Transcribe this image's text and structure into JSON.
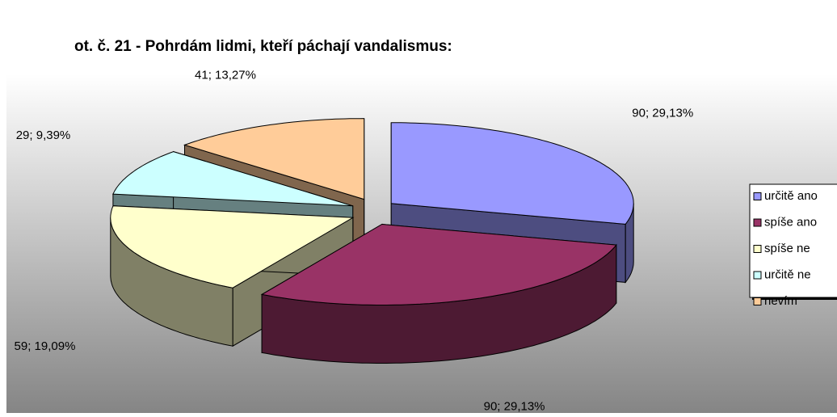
{
  "chart_data": {
    "type": "pie3d",
    "title": "ot. č. 21 -  Pohrdám lidmi, kteří páchají vandalismus:",
    "categories": [
      "určitě ano",
      "spíše ano",
      "spíše ne",
      "určitě ne",
      "nevím"
    ],
    "values": [
      90,
      90,
      59,
      29,
      41
    ],
    "value_labels": [
      "90; 29,13%",
      "90; 29,13%",
      "59; 19,09%",
      "29; 9,39%",
      "41; 13,27%"
    ],
    "colors": [
      "#9999ff",
      "#993366",
      "#ffffcc",
      "#ccffff",
      "#ffcc99"
    ],
    "legend": "right"
  }
}
